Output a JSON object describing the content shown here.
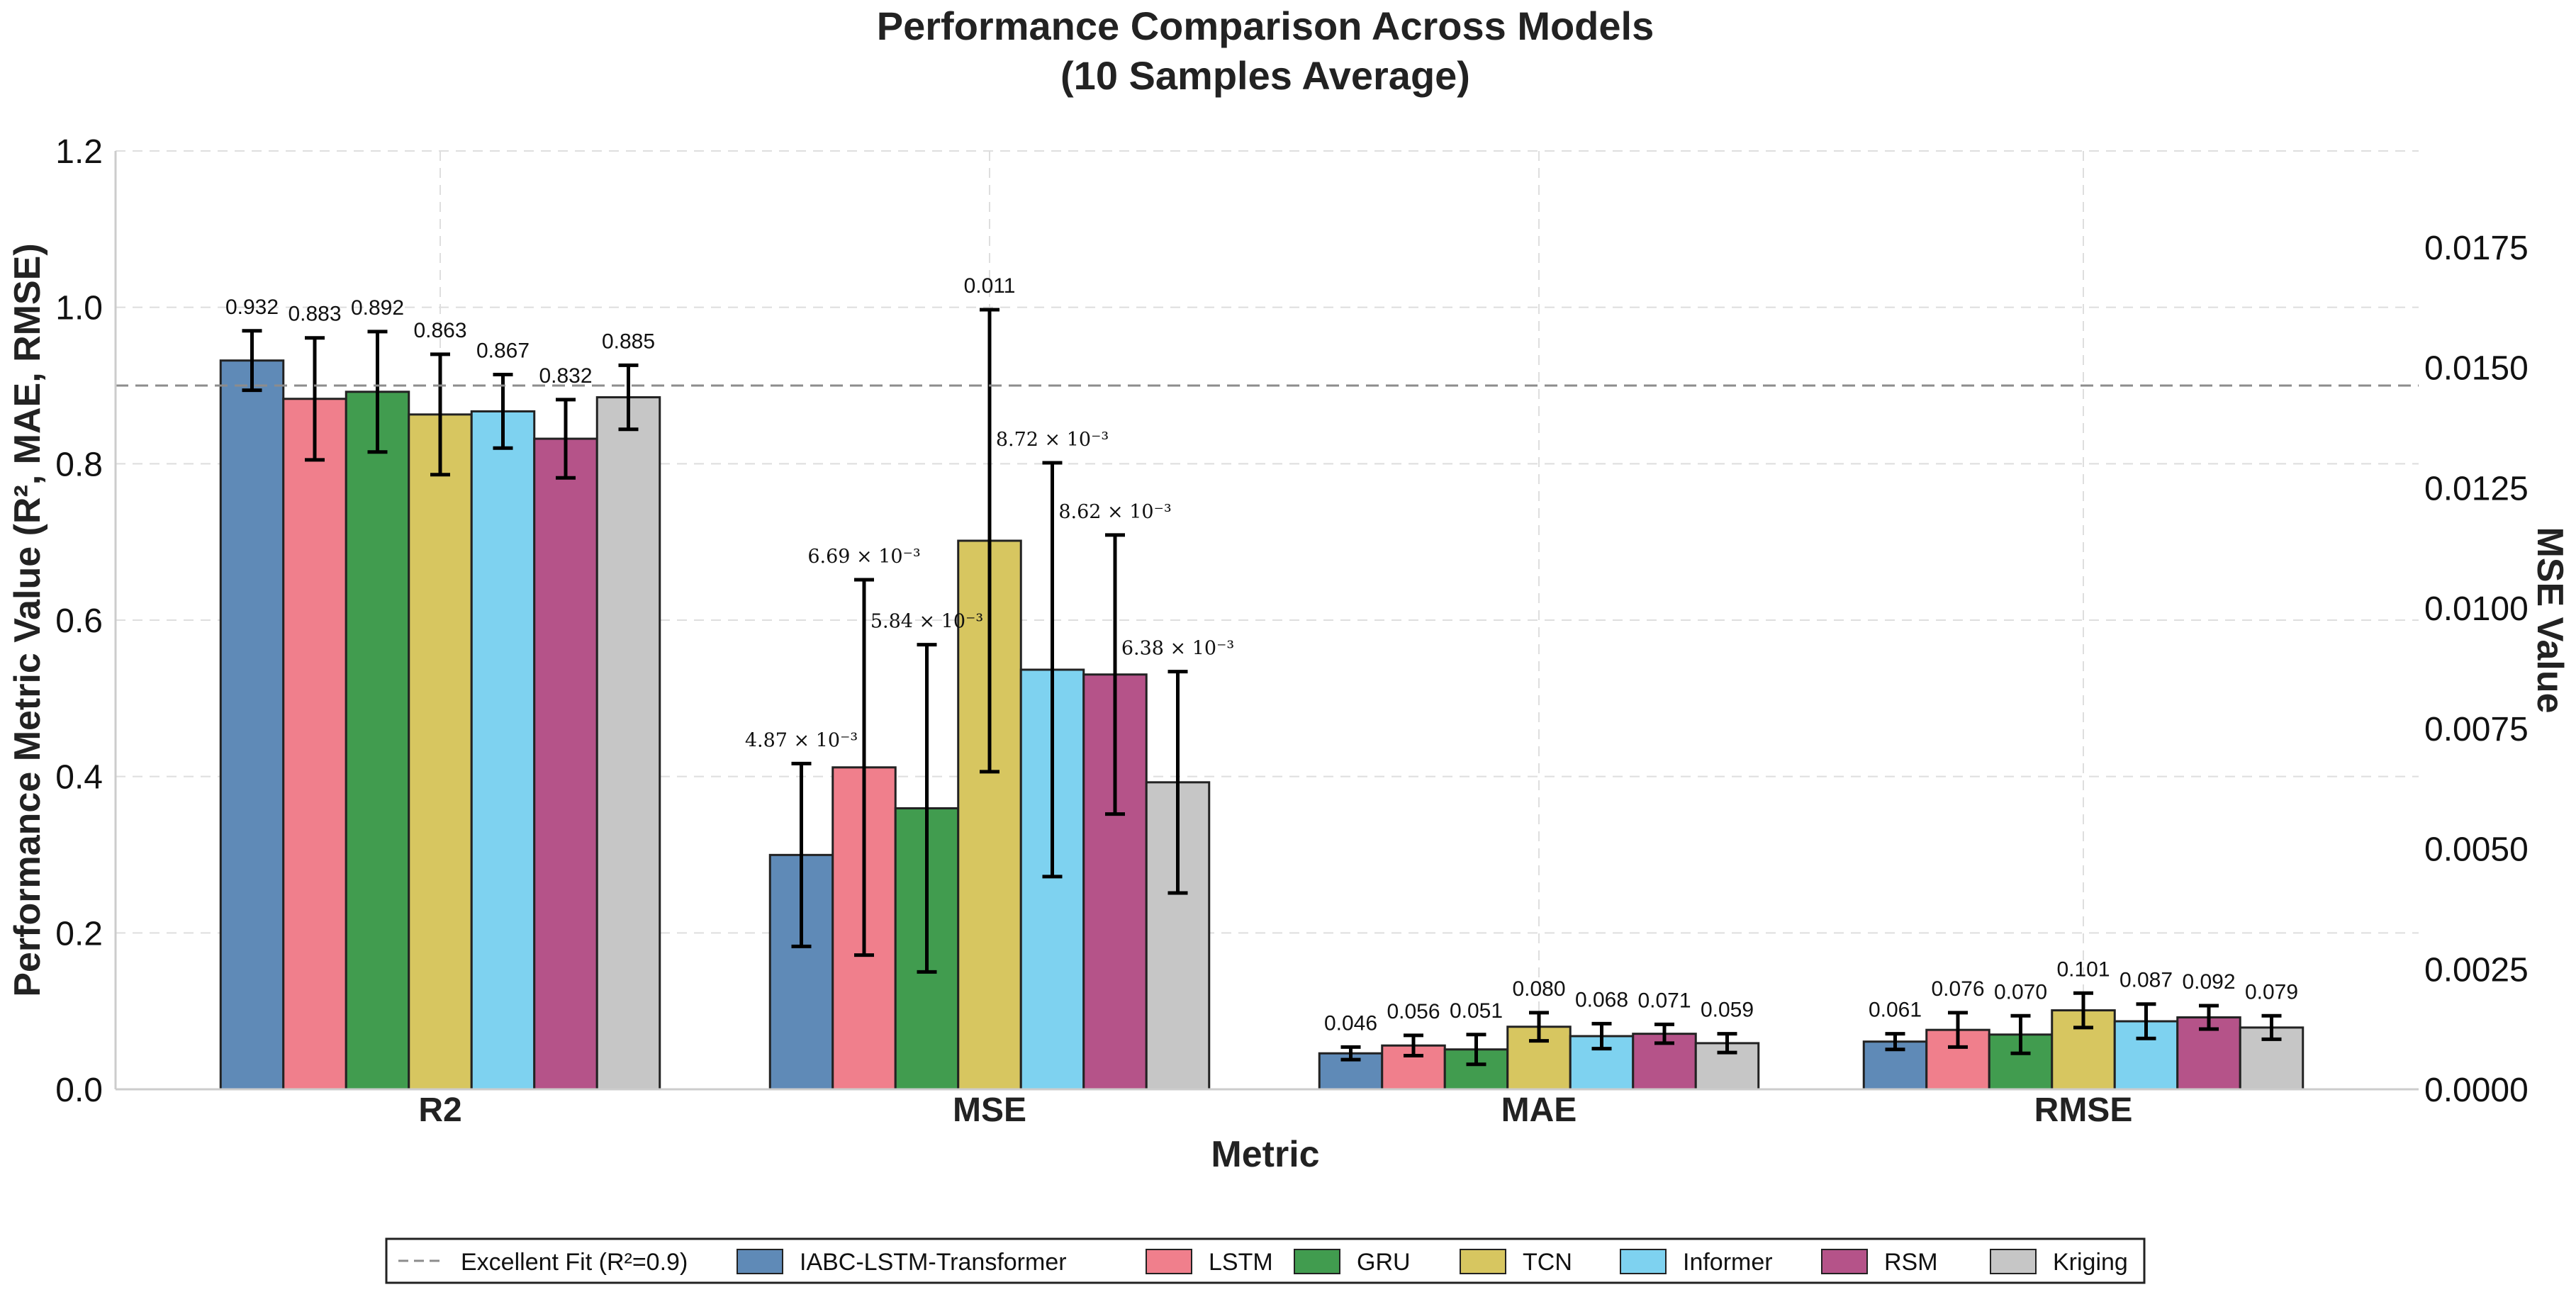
{
  "chart_data": {
    "type": "bar",
    "title": "Performance Comparison Across Models",
    "subtitle": "(10 Samples Average)",
    "xlabel": "Metric",
    "ylabel": "Performance Metric Value (R², MAE, RMSE)",
    "y2label": "MSE Value",
    "ylim": [
      0,
      1.2
    ],
    "y2lim": [
      0,
      0.0195
    ],
    "yticks": [
      "0.0",
      "0.2",
      "0.4",
      "0.6",
      "0.8",
      "1.0",
      "1.2"
    ],
    "y2ticks": [
      "0.0000",
      "0.0025",
      "0.0050",
      "0.0075",
      "0.0100",
      "0.0125",
      "0.0150",
      "0.0175"
    ],
    "grid": true,
    "legend_position": "bottom-center",
    "categories": [
      "R2",
      "MSE",
      "MAE",
      "RMSE"
    ],
    "reference_line": {
      "label": "Excellent Fit (R²=0.9)",
      "value": 0.9,
      "color": "#8c8c8c"
    },
    "series": [
      {
        "name": "IABC-LSTM-Transformer",
        "color": "#5f8ab7",
        "values": [
          0.932,
          0.00487,
          0.046,
          0.061
        ],
        "errors": [
          0.038,
          0.0019,
          0.008,
          0.01
        ],
        "labels": [
          "0.932",
          "4.87 × 10⁻³",
          "0.046",
          "0.061"
        ]
      },
      {
        "name": "LSTM",
        "color": "#f07f8c",
        "values": [
          0.883,
          0.00669,
          0.056,
          0.076
        ],
        "errors": [
          0.078,
          0.0039,
          0.013,
          0.022
        ],
        "labels": [
          "0.883",
          "6.69 × 10⁻³",
          "0.056",
          "0.076"
        ]
      },
      {
        "name": "GRU",
        "color": "#419c4f",
        "values": [
          0.892,
          0.00584,
          0.051,
          0.07
        ],
        "errors": [
          0.077,
          0.0034,
          0.019,
          0.024
        ],
        "labels": [
          "0.892",
          "5.84 × 10⁻³",
          "0.051",
          "0.070"
        ]
      },
      {
        "name": "TCN",
        "color": "#d7c660",
        "values": [
          0.863,
          0.0114,
          0.08,
          0.101
        ],
        "errors": [
          0.077,
          0.0048,
          0.018,
          0.022
        ],
        "labels": [
          "0.863",
          "0.011",
          "0.080",
          "0.101"
        ]
      },
      {
        "name": "Informer",
        "color": "#7ed2f0",
        "values": [
          0.867,
          0.00872,
          0.068,
          0.087
        ],
        "errors": [
          0.047,
          0.0043,
          0.016,
          0.022
        ],
        "labels": [
          "0.867",
          "8.72 × 10⁻³",
          "0.068",
          "0.087"
        ]
      },
      {
        "name": "RSM",
        "color": "#b55389",
        "values": [
          0.832,
          0.00862,
          0.071,
          0.092
        ],
        "errors": [
          0.05,
          0.0029,
          0.012,
          0.015
        ],
        "labels": [
          "0.832",
          "8.62 × 10⁻³",
          "0.071",
          "0.092"
        ]
      },
      {
        "name": "Kriging",
        "color": "#c6c6c6",
        "values": [
          0.885,
          0.00638,
          0.059,
          0.079
        ],
        "errors": [
          0.041,
          0.0023,
          0.012,
          0.015
        ],
        "labels": [
          "0.885",
          "6.38 × 10⁻³",
          "0.059",
          "0.079"
        ]
      }
    ]
  }
}
